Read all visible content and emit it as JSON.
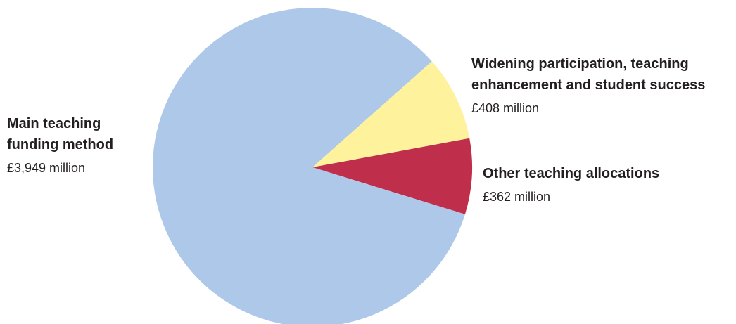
{
  "chart_data": {
    "type": "pie",
    "title": "",
    "unit": "£ million",
    "slices": [
      {
        "label": "Widening participation, teaching\nenhancement and student success",
        "value": 408,
        "value_label": "£408 million",
        "color": "#fff29c"
      },
      {
        "label": "Other teaching allocations",
        "value": 362,
        "value_label": "£362 million",
        "color": "#bf2f4b"
      },
      {
        "label": "Main teaching\nfunding method",
        "value": 3949,
        "value_label": "£3,949 million",
        "color": "#adc8e8"
      }
    ],
    "legend": "none"
  }
}
